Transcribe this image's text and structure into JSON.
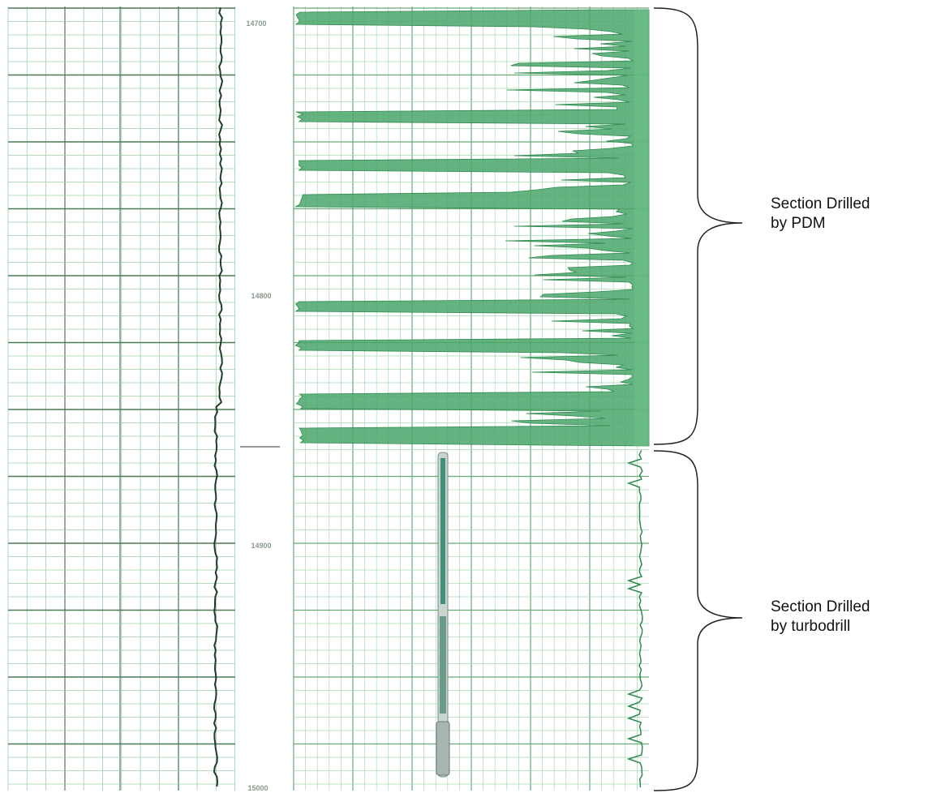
{
  "depth_labels": [
    "14700",
    "14800",
    "14900",
    "15000"
  ],
  "annotations": [
    {
      "lines": [
        "Section Drilled",
        "by PDM"
      ]
    },
    {
      "lines": [
        "Section Drilled",
        "by turbodrill"
      ]
    }
  ]
}
